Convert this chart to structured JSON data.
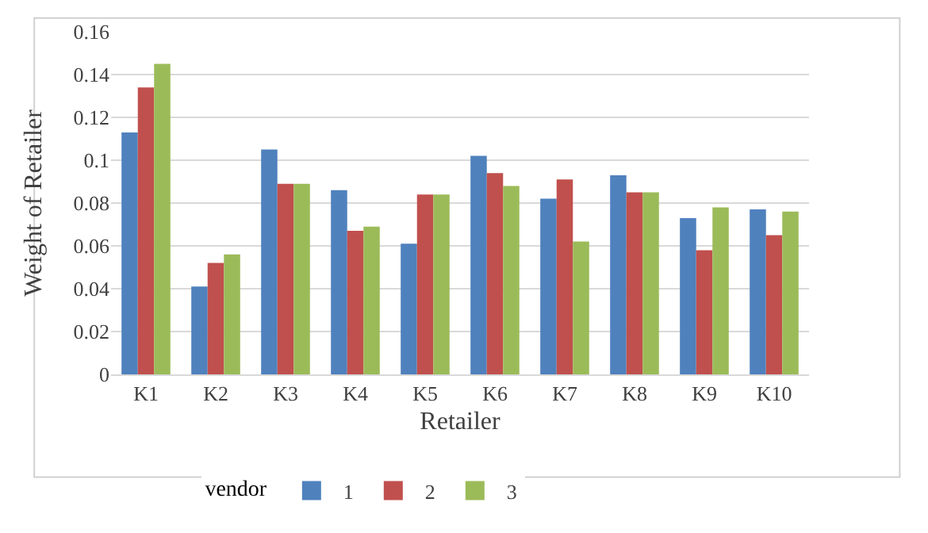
{
  "chart_data": {
    "type": "bar",
    "xlabel": "Retailer",
    "ylabel": "Weight of Retailer",
    "legend_title": "vendor",
    "categories": [
      "K1",
      "K2",
      "K3",
      "K4",
      "K5",
      "K6",
      "K7",
      "K8",
      "K9",
      "K10"
    ],
    "series": [
      {
        "name": "1",
        "color": "#4f81bd",
        "values": [
          0.113,
          0.041,
          0.105,
          0.086,
          0.061,
          0.102,
          0.082,
          0.093,
          0.073,
          0.077
        ]
      },
      {
        "name": "2",
        "color": "#c0504d",
        "values": [
          0.134,
          0.052,
          0.089,
          0.067,
          0.084,
          0.094,
          0.091,
          0.085,
          0.058,
          0.065
        ]
      },
      {
        "name": "3",
        "color": "#9bbb59",
        "values": [
          0.145,
          0.056,
          0.089,
          0.069,
          0.084,
          0.088,
          0.062,
          0.085,
          0.078,
          0.076
        ]
      }
    ],
    "ylim": [
      0,
      0.16
    ],
    "yticks": [
      0,
      0.02,
      0.04,
      0.06,
      0.08,
      0.1,
      0.12,
      0.14,
      0.16
    ],
    "grid": "y",
    "legend": "bottom"
  }
}
